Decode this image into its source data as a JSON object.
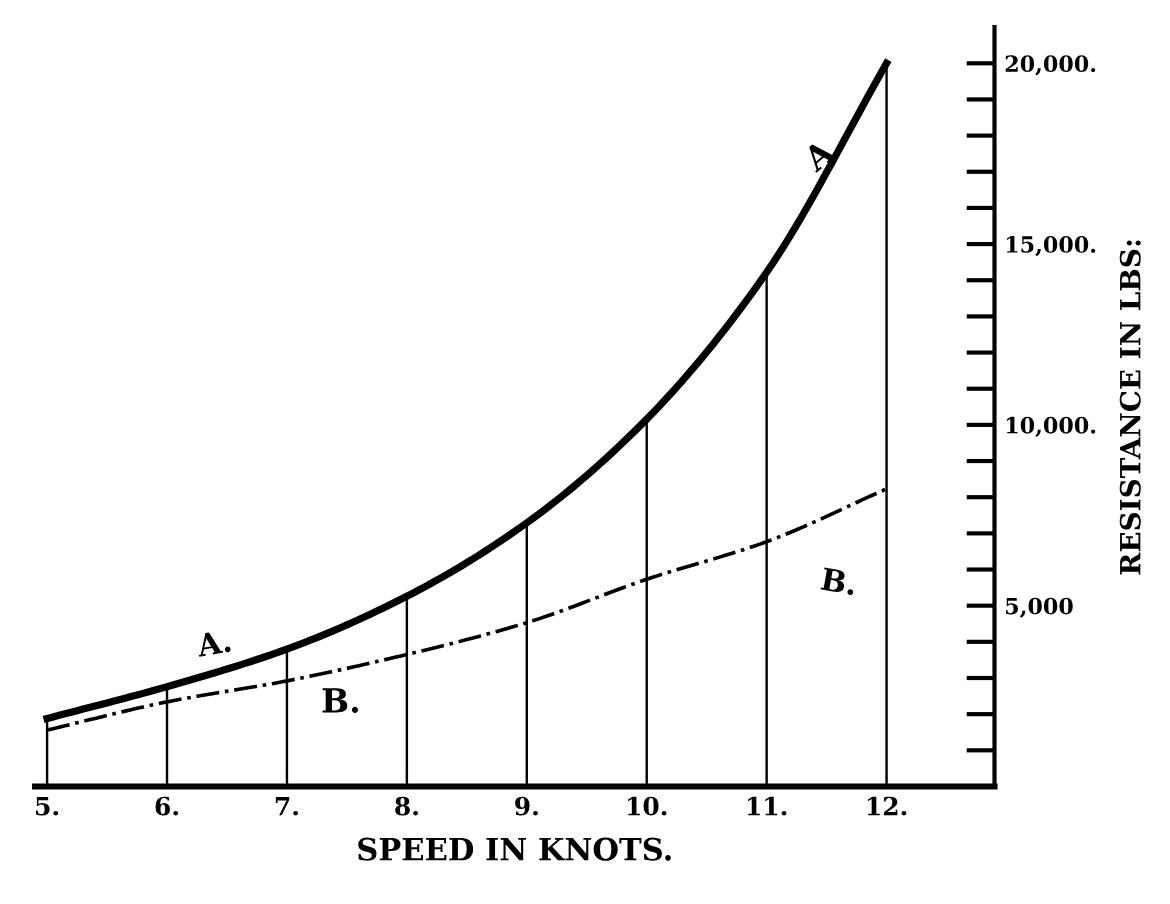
{
  "chart_data": {
    "type": "line",
    "xlabel": "SPEED IN KNOTS.",
    "ylabel": "RESISTANCE IN LBS:",
    "x": [
      5,
      6,
      7,
      8,
      9,
      10,
      11,
      12
    ],
    "series": [
      {
        "name": "A",
        "color": "#000000",
        "line_style": "solid",
        "values": [
          1880,
          2760,
          3800,
          5260,
          7290,
          10160,
          14220,
          20000
        ]
      },
      {
        "name": "B.",
        "color": "#000000",
        "line_style": "dashed",
        "values": [
          1560,
          2340,
          2920,
          3650,
          4530,
          5730,
          6770,
          8230
        ]
      },
      {
        "type": "bar",
        "color": "#000000",
        "values": [
          1880,
          2760,
          3800,
          5260,
          7290,
          10160,
          14220,
          20000
        ]
      }
    ],
    "annotations": [
      "A.",
      "B."
    ],
    "xlim": [
      4.9,
      12.9
    ],
    "ylim": [
      0,
      21000
    ],
    "xticks": [
      {
        "value": 5,
        "label": "5."
      },
      {
        "value": 6,
        "label": "6."
      },
      {
        "value": 7,
        "label": "7."
      },
      {
        "value": 8,
        "label": "8."
      },
      {
        "value": 9,
        "label": "9."
      },
      {
        "value": 10,
        "label": "10."
      },
      {
        "value": 11,
        "label": "11."
      },
      {
        "value": 12,
        "label": "12."
      }
    ],
    "yticks": [
      {
        "value": 1000,
        "label": null
      },
      {
        "value": 2000,
        "label": null
      },
      {
        "value": 3000,
        "label": null
      },
      {
        "value": 4000,
        "label": null
      },
      {
        "value": 5000,
        "label": "5,000"
      },
      {
        "value": 6000,
        "label": null
      },
      {
        "value": 7000,
        "label": null
      },
      {
        "value": 8000,
        "label": null
      },
      {
        "value": 9000,
        "label": null
      },
      {
        "value": 10000,
        "label": "10,000."
      },
      {
        "value": 11000,
        "label": null
      },
      {
        "value": 12000,
        "label": null
      },
      {
        "value": 13000,
        "label": null
      },
      {
        "value": 14000,
        "label": null
      },
      {
        "value": 15000,
        "label": "15,000."
      },
      {
        "value": 16000,
        "label": null
      },
      {
        "value": 17000,
        "label": null
      },
      {
        "value": 18000,
        "label": null
      },
      {
        "value": 19000,
        "label": null
      },
      {
        "value": 20000,
        "label": "20,000."
      }
    ],
    "grid": false,
    "legend": false,
    "marker": "none"
  }
}
